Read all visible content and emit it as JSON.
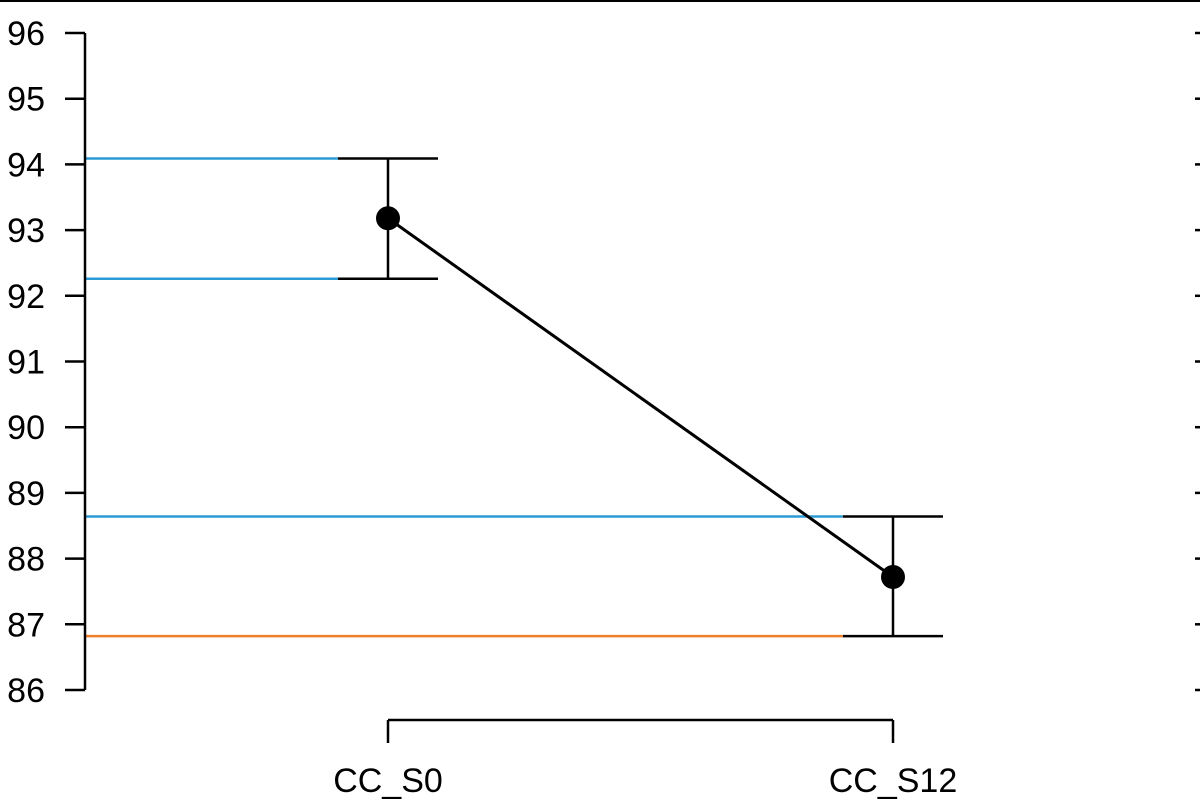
{
  "chart_data": {
    "type": "line",
    "categories": [
      "CC_S0",
      "CC_S12"
    ],
    "series": [
      {
        "values": [
          93.18,
          87.72
        ],
        "ci_lower": [
          92.26,
          86.82
        ],
        "ci_upper": [
          94.09,
          88.64
        ]
      }
    ],
    "ylim": [
      86,
      96
    ],
    "yticks": [
      "86",
      "87",
      "88",
      "89",
      "90",
      "91",
      "92",
      "93",
      "94",
      "95",
      "96"
    ],
    "xlabel": "",
    "ylabel": "",
    "title": "",
    "grid": false,
    "reference_lines": [
      {
        "value": 94.09,
        "color": "#2b9bd6",
        "ends_at": "CC_S0"
      },
      {
        "value": 92.26,
        "color": "#2b9bd6",
        "ends_at": "CC_S0"
      },
      {
        "value": 88.64,
        "color": "#2b9bd6",
        "ends_at": "CC_S12"
      },
      {
        "value": 86.82,
        "color": "#f07f2c",
        "ends_at": "CC_S12"
      }
    ],
    "colors": {
      "line": "#000000",
      "point": "#000000",
      "error_bar": "#000000"
    }
  }
}
